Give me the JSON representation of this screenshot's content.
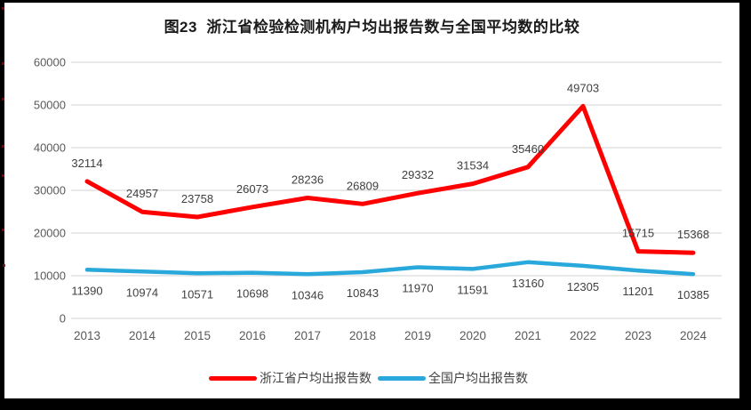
{
  "title": "图23  浙江省检验检测机构户均出报告数与全国平均数的比较",
  "palette": {
    "red": "#fe0000",
    "blue": "#29a8dc",
    "grid": "#d9d9d9",
    "axis_text": "#595959",
    "label_text": "#404040",
    "title_text": "#1a1a1a",
    "background": "#ffffff",
    "border": "#000000"
  },
  "chart_data": {
    "type": "line",
    "title": "图23  浙江省检验检测机构户均出报告数与全国平均数的比较",
    "categories": [
      "2013",
      "2014",
      "2015",
      "2016",
      "2017",
      "2018",
      "2019",
      "2020",
      "2021",
      "2022",
      "2023",
      "2024"
    ],
    "series": [
      {
        "name": "浙江省户均出报告数",
        "color": "#fe0000",
        "values": [
          32114,
          24957,
          23758,
          26073,
          28236,
          26809,
          29332,
          31534,
          35460,
          49703,
          15715,
          15368
        ]
      },
      {
        "name": "全国户均出报告数",
        "color": "#29a8dc",
        "values": [
          11390,
          10974,
          10571,
          10698,
          10346,
          10843,
          11970,
          11591,
          13160,
          12305,
          11201,
          10385
        ]
      }
    ],
    "ylim": [
      0,
      60000
    ],
    "ytick_step": 10000,
    "yticks": [
      0,
      10000,
      20000,
      30000,
      40000,
      50000,
      60000
    ],
    "grid": true,
    "data_labels": true,
    "legend_position": "bottom"
  },
  "legend": {
    "items": [
      {
        "label": "浙江省户均出报告数"
      },
      {
        "label": "全国户均出报告数"
      }
    ]
  }
}
